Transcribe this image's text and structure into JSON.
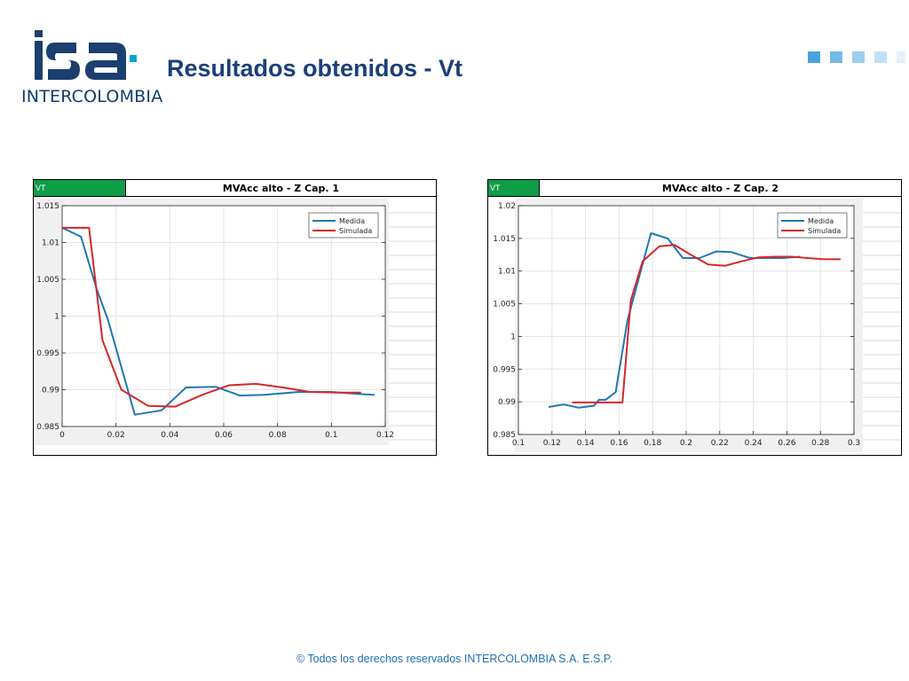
{
  "header": {
    "logo_text": "INTERCOLOMBIA",
    "title": "Resultados obtenidos - Vt"
  },
  "footer": {
    "text": "© Todos los derechos reservados INTERCOLOMBIA S.A. E.S.P."
  },
  "colors": {
    "brand_navy": "#1b3f6e",
    "brand_cyan": "#00a3d9",
    "tag_green": "#0f9d48",
    "medida": "#1f77b4",
    "simulada": "#d62728"
  },
  "panels": [
    {
      "tag": "VT",
      "title": "MVAcc alto - Z Cap. 1"
    },
    {
      "tag": "VT",
      "title": "MVAcc alto - Z Cap. 2"
    }
  ],
  "chart_data": [
    {
      "type": "line",
      "title": "MVAcc alto - Z Cap. 1",
      "xlim": [
        0,
        0.12
      ],
      "ylim": [
        0.985,
        1.015
      ],
      "xticks": [
        0,
        0.02,
        0.04,
        0.06,
        0.08,
        0.1,
        0.12
      ],
      "xtick_labels": [
        "0",
        "0.02",
        "0.04",
        "0.06",
        "0.08",
        "0.1",
        "0.12"
      ],
      "yticks": [
        0.985,
        0.99,
        0.995,
        1,
        1.005,
        1.01,
        1.015
      ],
      "ytick_labels": [
        "0.985",
        "0.99",
        "0.995",
        "1",
        "1.005",
        "1.01",
        "1.015"
      ],
      "grid": true,
      "legend": "top-right",
      "series": [
        {
          "name": "Medida",
          "color": "#1f77b4",
          "x": [
            0,
            0.007,
            0.013,
            0.017,
            0.027,
            0.037,
            0.046,
            0.057,
            0.066,
            0.075,
            0.088,
            0.1,
            0.111,
            0.116
          ],
          "y": [
            1.012,
            1.0108,
            1.0035,
            0.9995,
            0.9866,
            0.9872,
            0.9903,
            0.9904,
            0.9892,
            0.9893,
            0.9897,
            0.9897,
            0.9894,
            0.9893
          ]
        },
        {
          "name": "Simulada",
          "color": "#d62728",
          "x": [
            0,
            0.01,
            0.015,
            0.022,
            0.032,
            0.042,
            0.052,
            0.062,
            0.072,
            0.082,
            0.092,
            0.102,
            0.111
          ],
          "y": [
            1.012,
            1.012,
            0.9967,
            0.99,
            0.9878,
            0.9877,
            0.9893,
            0.9906,
            0.9908,
            0.9903,
            0.9897,
            0.9896,
            0.9896
          ]
        }
      ]
    },
    {
      "type": "line",
      "title": "MVAcc alto - Z Cap. 2",
      "xlim": [
        0.1,
        0.3
      ],
      "ylim": [
        0.985,
        1.02
      ],
      "xticks": [
        0.1,
        0.12,
        0.14,
        0.16,
        0.18,
        0.2,
        0.22,
        0.24,
        0.26,
        0.28,
        0.3
      ],
      "xtick_labels": [
        "0.1",
        "0.12",
        "0.14",
        "0.16",
        "0.18",
        "0.2",
        "0.22",
        "0.24",
        "0.26",
        "0.28",
        "0.3"
      ],
      "yticks": [
        0.985,
        0.99,
        0.995,
        1,
        1.005,
        1.01,
        1.015,
        1.02
      ],
      "ytick_labels": [
        "0.985",
        "0.99",
        "0.995",
        "1",
        "1.005",
        "1.01",
        "1.015",
        "1.02"
      ],
      "grid": true,
      "legend": "top-right",
      "series": [
        {
          "name": "Medida",
          "color": "#1f77b4",
          "x": [
            0.118,
            0.127,
            0.136,
            0.145,
            0.148,
            0.152,
            0.158,
            0.165,
            0.179,
            0.189,
            0.198,
            0.208,
            0.218,
            0.227,
            0.238,
            0.248,
            0.258,
            0.268
          ],
          "y": [
            0.9892,
            0.9896,
            0.9891,
            0.9894,
            0.9903,
            0.9903,
            0.9915,
            1.0025,
            1.0158,
            1.015,
            1.012,
            1.012,
            1.013,
            1.0129,
            1.012,
            1.012,
            1.012,
            1.0122
          ],
          "y_note": ""
        },
        {
          "name": "Simulada",
          "color": "#d62728",
          "x": [
            0.132,
            0.14,
            0.15,
            0.158,
            0.162,
            0.167,
            0.174,
            0.184,
            0.193,
            0.202,
            0.213,
            0.223,
            0.233,
            0.243,
            0.253,
            0.263,
            0.272,
            0.282,
            0.292
          ],
          "y": [
            0.9899,
            0.9899,
            0.9899,
            0.9899,
            0.9899,
            1.0055,
            1.0115,
            1.0138,
            1.014,
            1.0126,
            1.011,
            1.0108,
            1.0115,
            1.0121,
            1.0122,
            1.0122,
            1.012,
            1.0118,
            1.0118
          ]
        }
      ]
    }
  ]
}
